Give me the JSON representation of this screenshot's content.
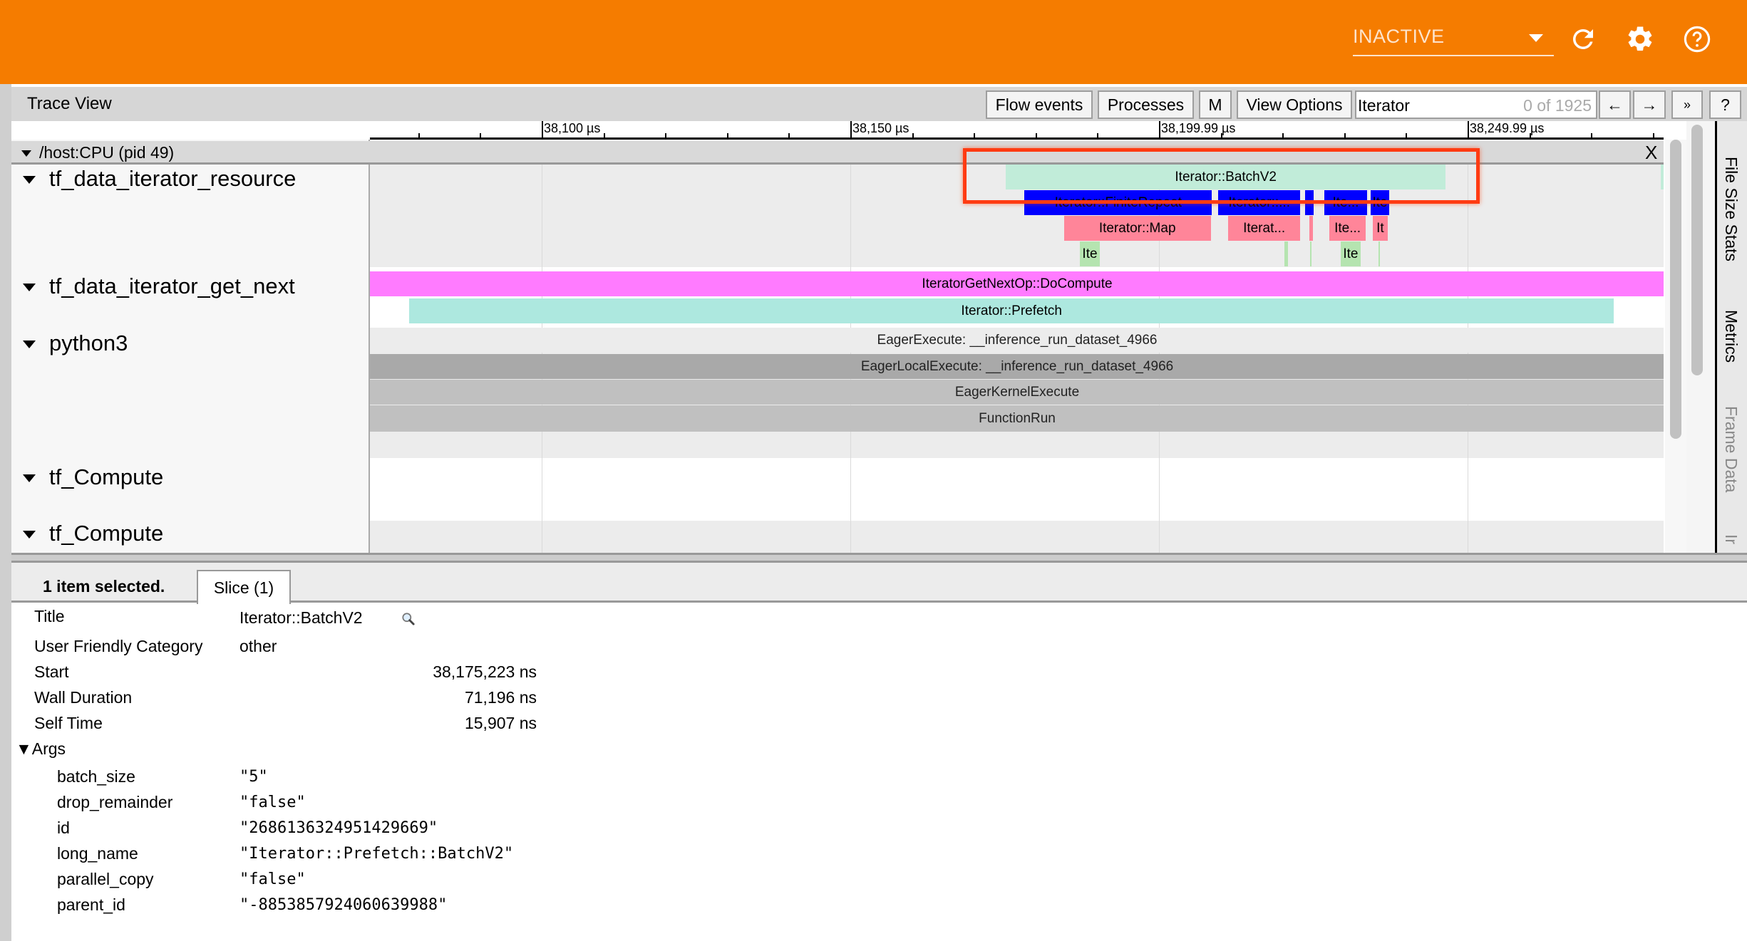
{
  "header": {
    "status": "INACTIVE",
    "icons": [
      "refresh-icon",
      "settings-gear-icon",
      "help-icon"
    ],
    "brand_color": "#f57c00"
  },
  "toolbar": {
    "title": "Trace View",
    "flow_events": "Flow events",
    "processes": "Processes",
    "m": "M",
    "view_options": "View Options",
    "search_value": "Iterator",
    "search_count": "0 of 1925",
    "prev": "←",
    "next": "→",
    "more": "»",
    "help": "?"
  },
  "ruler": {
    "ticks": [
      {
        "t": 38100,
        "label": "38,100 µs"
      },
      {
        "t": 38150,
        "label": "38,150 µs"
      },
      {
        "t": 38199.99,
        "label": "38,199.99 µs"
      },
      {
        "t": 38249.99,
        "label": "38,249.99 µs"
      }
    ]
  },
  "process": {
    "label": "/host:CPU (pid 49)",
    "close": "X"
  },
  "tracks": [
    {
      "label": "tf_data_iterator_resource"
    },
    {
      "label": "tf_data_iterator_get_next"
    },
    {
      "label": "python3"
    },
    {
      "label": "tf_Compute"
    },
    {
      "label": "tf_Compute"
    }
  ],
  "slices": [
    {
      "label": "Iterator::BatchV2",
      "start_us": 38175.223,
      "dur_us": 71.196,
      "row": 0,
      "color": "#c1ecd9"
    },
    {
      "label": "",
      "start_us": 38281.3,
      "dur_us": 0.6,
      "row": 0,
      "color": "#c1ecd9"
    },
    {
      "label": "Iterator::FiniteRepeat",
      "start_us": 38178.2,
      "dur_us": 30.4,
      "row": 1,
      "color": "#0000ff"
    },
    {
      "label": "Iterator::...",
      "start_us": 38209.6,
      "dur_us": 13.3,
      "row": 1,
      "color": "#0000ff"
    },
    {
      "label": "",
      "start_us": 38223.7,
      "dur_us": 1.4,
      "row": 1,
      "color": "#0000ff"
    },
    {
      "label": "Ite...",
      "start_us": 38226.8,
      "dur_us": 6.9,
      "row": 1,
      "color": "#0000ff"
    },
    {
      "label": "Ite",
      "start_us": 38234.3,
      "dur_us": 3.0,
      "row": 1,
      "color": "#0000ff"
    },
    {
      "label": "Iterator::Map",
      "start_us": 38184.6,
      "dur_us": 23.8,
      "row": 2,
      "color": "#ff8599"
    },
    {
      "label": "Iterat...",
      "start_us": 38211.2,
      "dur_us": 11.7,
      "row": 2,
      "color": "#ff8599"
    },
    {
      "label": "",
      "start_us": 38224.4,
      "dur_us": 0.6,
      "row": 2,
      "color": "#ff8599"
    },
    {
      "label": "Ite...",
      "start_us": 38227.6,
      "dur_us": 5.9,
      "row": 2,
      "color": "#ff8599"
    },
    {
      "label": "It",
      "start_us": 38234.6,
      "dur_us": 2.5,
      "row": 2,
      "color": "#ff8599"
    },
    {
      "label": "Ite",
      "start_us": 38187.2,
      "dur_us": 3.2,
      "row": 3,
      "color": "#b5e4b0"
    },
    {
      "label": "",
      "start_us": 38220.3,
      "dur_us": 0.6,
      "row": 3,
      "color": "#b5e4b0"
    },
    {
      "label": "",
      "start_us": 38224.5,
      "dur_us": 0.2,
      "row": 3,
      "color": "#b5e4b0"
    },
    {
      "label": "Ite",
      "start_us": 38229.4,
      "dur_us": 3.3,
      "row": 3,
      "color": "#b5e4b0"
    },
    {
      "label": "",
      "start_us": 38235.6,
      "dur_us": 0.2,
      "row": 3,
      "color": "#b5e4b0"
    },
    {
      "label": "IteratorGetNextOp::DoCompute",
      "start_us": 38060,
      "dur_us": 260,
      "row": 4,
      "color": "#ff7bff"
    },
    {
      "label": "Iterator::Prefetch",
      "start_us": 38078.5,
      "dur_us": 195.2,
      "row": 5,
      "color": "#ade8df"
    },
    {
      "label": "EagerExecute: __inference_run_dataset_4966",
      "start_us": 38000,
      "dur_us": 400,
      "row": 6,
      "color": "#ececec"
    },
    {
      "label": "EagerLocalExecute: __inference_run_dataset_4966",
      "start_us": 38000,
      "dur_us": 400,
      "row": 7,
      "color": "#a9a9a9"
    },
    {
      "label": "EagerKernelExecute",
      "start_us": 38000,
      "dur_us": 400,
      "row": 8,
      "color": "#c0c0c0"
    },
    {
      "label": "FunctionRun",
      "start_us": 38000,
      "dur_us": 400,
      "row": 9,
      "color": "#c0c0c0"
    }
  ],
  "side_tabs": [
    "File Size Stats",
    "Metrics",
    "Frame Data",
    "Ir"
  ],
  "details": {
    "selected": "1 item selected.",
    "tab": "Slice (1)",
    "rows": [
      {
        "label": "Title",
        "value": "Iterator::BatchV2"
      },
      {
        "label": "User Friendly Category",
        "value": "other"
      },
      {
        "label": "Start",
        "value": "38,175,223 ns"
      },
      {
        "label": "Wall Duration",
        "value": "71,196 ns"
      },
      {
        "label": "Self Time",
        "value": "15,907 ns"
      }
    ],
    "args_label": "▼Args",
    "args": [
      {
        "key": "batch_size",
        "value": "\"5\""
      },
      {
        "key": "drop_remainder",
        "value": "\"false\""
      },
      {
        "key": "id",
        "value": "\"268613632495142966 9\""
      },
      {
        "key": "long_name",
        "value": "\"Iterator::Prefetch::BatchV2\""
      },
      {
        "key": "parallel_copy",
        "value": "\"false\""
      },
      {
        "key": "parent_id",
        "value": "\"-8853857924060639988\""
      }
    ]
  }
}
